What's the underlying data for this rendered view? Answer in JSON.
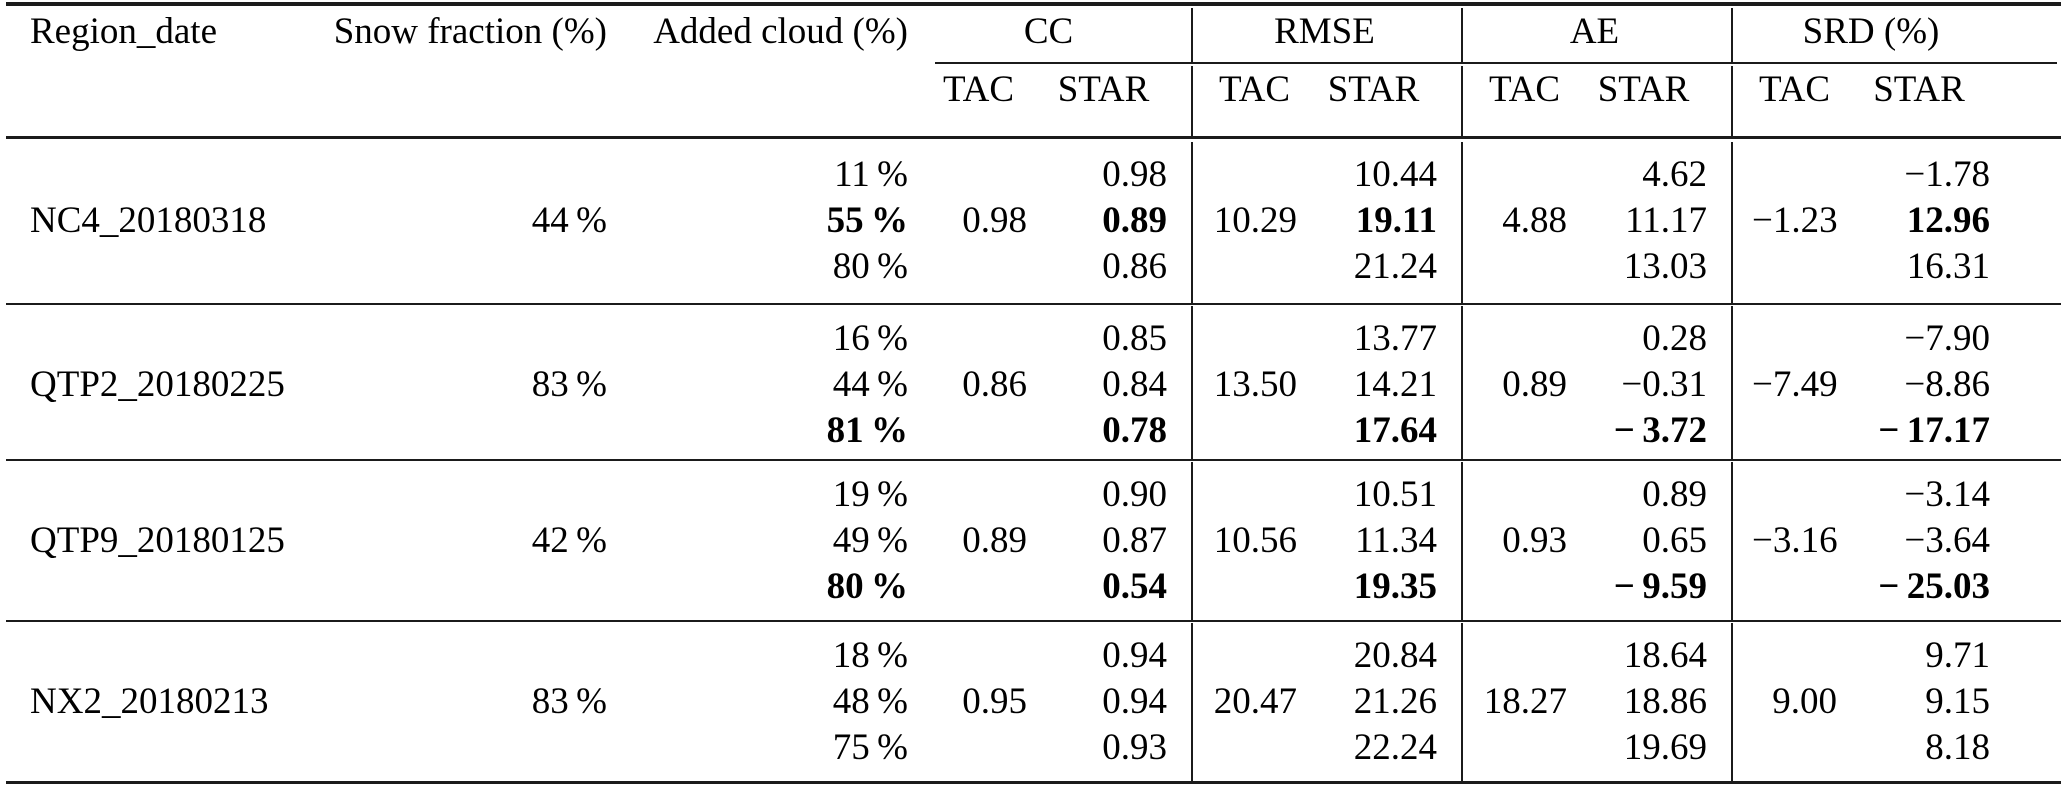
{
  "colors": {
    "background": "#ffffff",
    "text": "#000000",
    "rule": "#1b1b1b"
  },
  "header": {
    "region": "Region_date",
    "snow": "Snow fraction (%)",
    "cloud": "Added cloud (%)",
    "groups": {
      "cc": "CC",
      "rmse": "RMSE",
      "ae": "AE",
      "srd": "SRD (%)"
    },
    "sub": {
      "tac": "TAC",
      "star": "STAR"
    }
  },
  "blocks": [
    {
      "region": "NC4_20180318",
      "snow": "44 %",
      "rows": [
        {
          "cloud": "11 %",
          "cc_tac": "",
          "cc_star": "0.98",
          "rmse_tac": "",
          "rmse_star": "10.44",
          "ae_tac": "",
          "ae_star": "4.62",
          "srd_tac": "",
          "srd_star": "−1.78",
          "bold": {}
        },
        {
          "cloud": "55 %",
          "cc_tac": "0.98",
          "cc_star": "0.89",
          "rmse_tac": "10.29",
          "rmse_star": "19.11",
          "ae_tac": "4.88",
          "ae_star": "11.17",
          "srd_tac": "−1.23",
          "srd_star": "12.96",
          "bold": {
            "cloud": true,
            "cc_star": true,
            "rmse_star": true,
            "srd_star": true
          }
        },
        {
          "cloud": "80 %",
          "cc_tac": "",
          "cc_star": "0.86",
          "rmse_tac": "",
          "rmse_star": "21.24",
          "ae_tac": "",
          "ae_star": "13.03",
          "srd_tac": "",
          "srd_star": "16.31",
          "bold": {}
        }
      ]
    },
    {
      "region": "QTP2_20180225",
      "snow": "83 %",
      "rows": [
        {
          "cloud": "16 %",
          "cc_tac": "",
          "cc_star": "0.85",
          "rmse_tac": "",
          "rmse_star": "13.77",
          "ae_tac": "",
          "ae_star": "0.28",
          "srd_tac": "",
          "srd_star": "−7.90",
          "bold": {}
        },
        {
          "cloud": "44 %",
          "cc_tac": "0.86",
          "cc_star": "0.84",
          "rmse_tac": "13.50",
          "rmse_star": "14.21",
          "ae_tac": "0.89",
          "ae_star": "−0.31",
          "srd_tac": "−7.49",
          "srd_star": "−8.86",
          "bold": {}
        },
        {
          "cloud": "81 %",
          "cc_tac": "",
          "cc_star": "0.78",
          "rmse_tac": "",
          "rmse_star": "17.64",
          "ae_tac": "",
          "ae_star": "− 3.72",
          "srd_tac": "",
          "srd_star": "− 17.17",
          "bold": {
            "cloud": true,
            "cc_star": true,
            "rmse_star": true,
            "ae_star": true,
            "srd_star": true
          }
        }
      ]
    },
    {
      "region": "QTP9_20180125",
      "snow": "42 %",
      "rows": [
        {
          "cloud": "19 %",
          "cc_tac": "",
          "cc_star": "0.90",
          "rmse_tac": "",
          "rmse_star": "10.51",
          "ae_tac": "",
          "ae_star": "0.89",
          "srd_tac": "",
          "srd_star": "−3.14",
          "bold": {}
        },
        {
          "cloud": "49 %",
          "cc_tac": "0.89",
          "cc_star": "0.87",
          "rmse_tac": "10.56",
          "rmse_star": "11.34",
          "ae_tac": "0.93",
          "ae_star": "0.65",
          "srd_tac": "−3.16",
          "srd_star": "−3.64",
          "bold": {}
        },
        {
          "cloud": "80 %",
          "cc_tac": "",
          "cc_star": "0.54",
          "rmse_tac": "",
          "rmse_star": "19.35",
          "ae_tac": "",
          "ae_star": "− 9.59",
          "srd_tac": "",
          "srd_star": "− 25.03",
          "bold": {
            "cloud": true,
            "cc_star": true,
            "rmse_star": true,
            "ae_star": true,
            "srd_star": true
          }
        }
      ]
    },
    {
      "region": "NX2_20180213",
      "snow": "83 %",
      "rows": [
        {
          "cloud": "18 %",
          "cc_tac": "",
          "cc_star": "0.94",
          "rmse_tac": "",
          "rmse_star": "20.84",
          "ae_tac": "",
          "ae_star": "18.64",
          "srd_tac": "",
          "srd_star": "9.71",
          "bold": {}
        },
        {
          "cloud": "48 %",
          "cc_tac": "0.95",
          "cc_star": "0.94",
          "rmse_tac": "20.47",
          "rmse_star": "21.26",
          "ae_tac": "18.27",
          "ae_star": "18.86",
          "srd_tac": "9.00",
          "srd_star": "9.15",
          "bold": {}
        },
        {
          "cloud": "75 %",
          "cc_tac": "",
          "cc_star": "0.93",
          "rmse_tac": "",
          "rmse_star": "22.24",
          "ae_tac": "",
          "ae_star": "19.69",
          "srd_tac": "",
          "srd_star": "8.18",
          "bold": {}
        }
      ]
    }
  ]
}
